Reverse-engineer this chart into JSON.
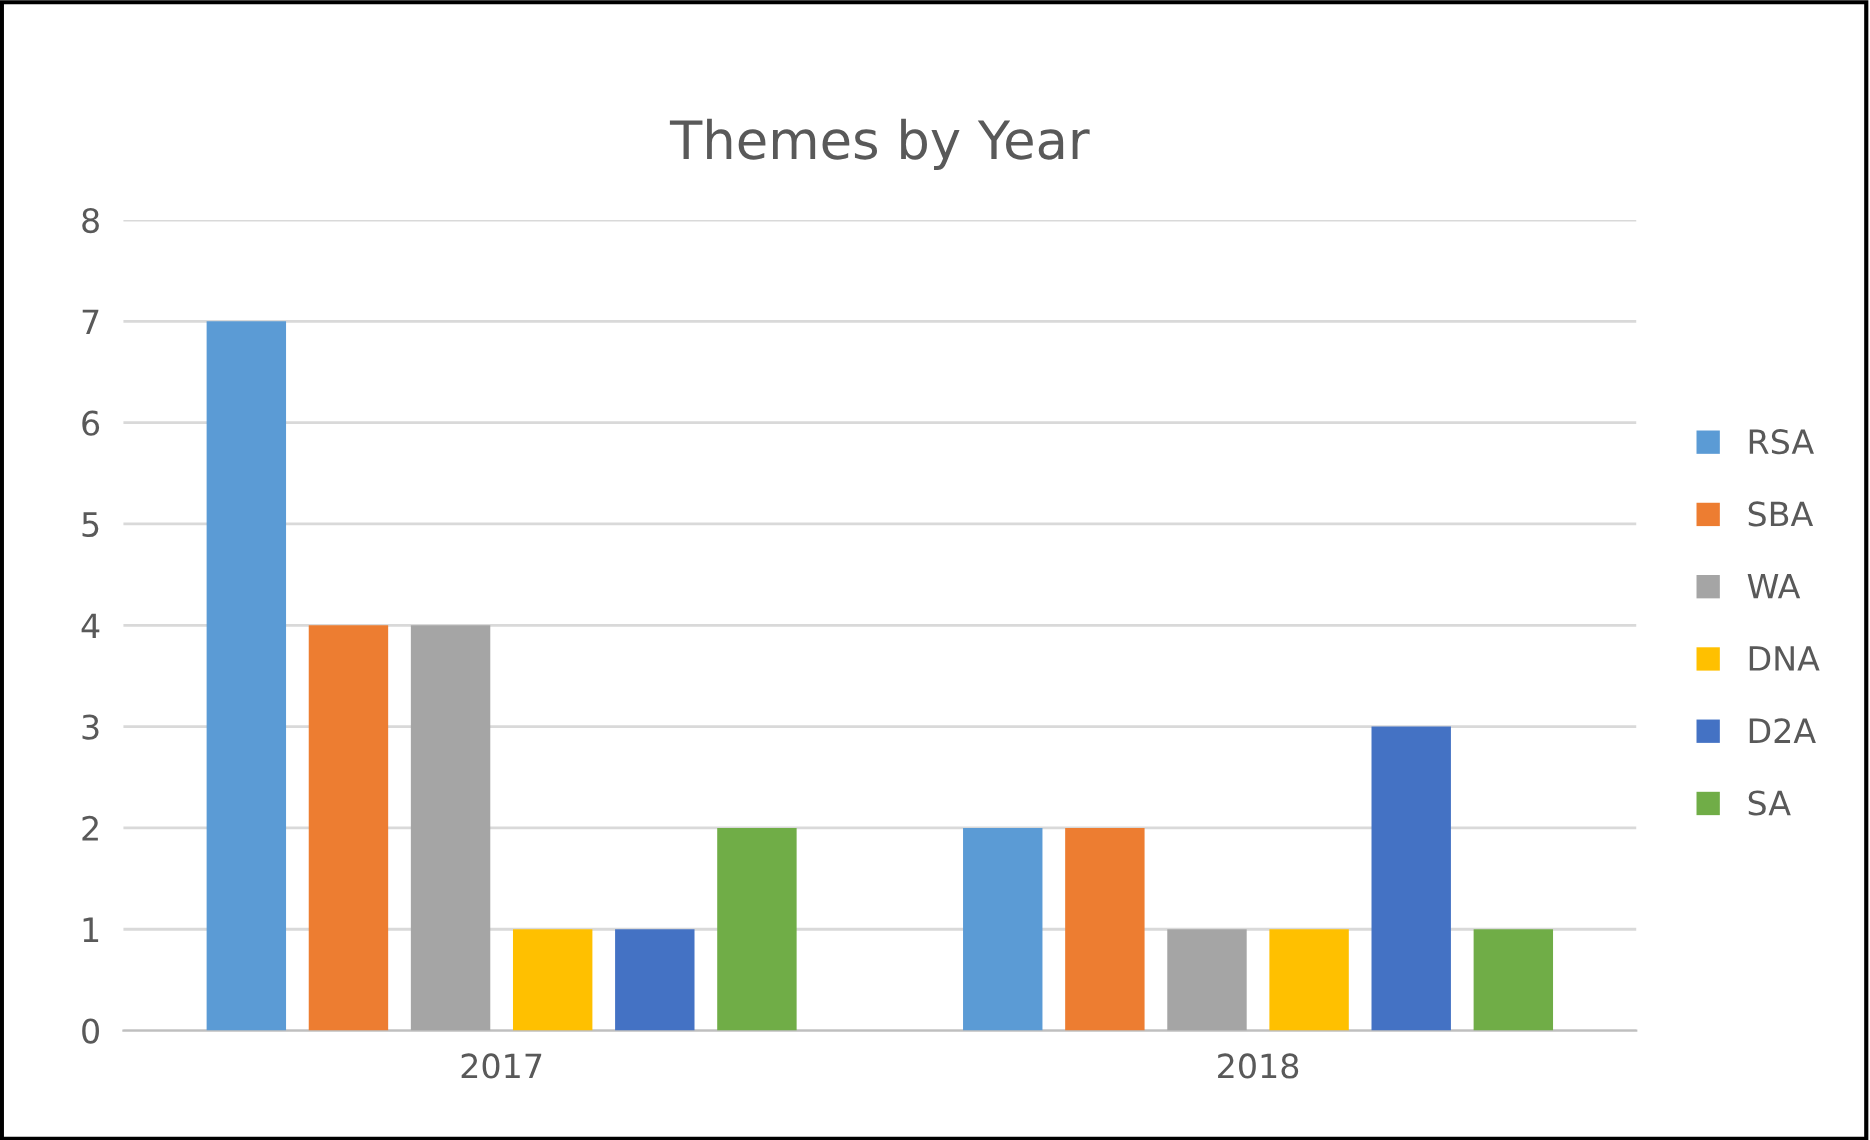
{
  "chart_data": {
    "type": "bar",
    "title": "Themes by Year",
    "categories": [
      "2017",
      "2018"
    ],
    "series": [
      {
        "name": "RSA",
        "color": "#5b9bd5",
        "values": [
          7,
          2
        ]
      },
      {
        "name": "SBA",
        "color": "#ed7d31",
        "values": [
          4,
          2
        ]
      },
      {
        "name": "WA",
        "color": "#a5a5a5",
        "values": [
          4,
          1
        ]
      },
      {
        "name": "DNA",
        "color": "#ffc000",
        "values": [
          1,
          1
        ]
      },
      {
        "name": "D2A",
        "color": "#4472c4",
        "values": [
          1,
          3
        ]
      },
      {
        "name": "SA",
        "color": "#70ad47",
        "values": [
          2,
          1
        ]
      }
    ],
    "ylim": [
      0,
      8
    ],
    "yticks": [
      0,
      1,
      2,
      3,
      4,
      5,
      6,
      7,
      8
    ],
    "grid": "y",
    "legend": "right"
  }
}
